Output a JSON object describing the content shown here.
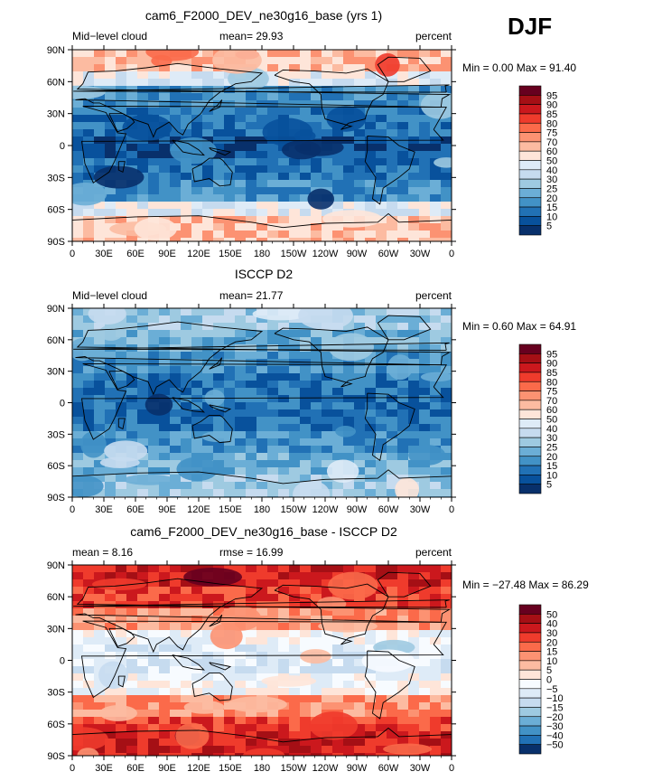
{
  "season": "DJF",
  "chart_data": [
    {
      "type": "heatmap",
      "title": "cam6_F2000_DEV_ne30g16_base (yrs 1)",
      "left_label": "Mid−level cloud",
      "center_label": "mean=  29.93",
      "right_label": "percent",
      "stats": "Min =   0.00 Max =  91.40",
      "lon_ticks": [
        "0",
        "30E",
        "60E",
        "90E",
        "120E",
        "150E",
        "180",
        "150W",
        "120W",
        "90W",
        "60W",
        "30W",
        "0"
      ],
      "lat_ticks": [
        "90N",
        "60N",
        "30N",
        "0",
        "30S",
        "60S",
        "90S"
      ],
      "colorbar_levels": [
        "95",
        "90",
        "85",
        "80",
        "75",
        "70",
        "60",
        "50",
        "40",
        "30",
        "25",
        "20",
        "15",
        "10",
        "5"
      ],
      "colorbar_colors": [
        "#67001f",
        "#a50f15",
        "#cb181d",
        "#ef3b2c",
        "#fb6a4a",
        "#fc9272",
        "#fcbba1",
        "#fee5d9",
        "#deebf7",
        "#c6dbef",
        "#9ecae1",
        "#6baed6",
        "#4292c6",
        "#2171b5",
        "#08519c",
        "#08306b"
      ],
      "mean": 29.93,
      "min": 0.0,
      "max": 91.4
    },
    {
      "type": "heatmap",
      "title": "ISCCP D2",
      "left_label": "Mid−level cloud",
      "center_label": "mean=  21.77",
      "right_label": "percent",
      "stats": "Min =   0.60 Max =  64.91",
      "lon_ticks": [
        "0",
        "30E",
        "60E",
        "90E",
        "120E",
        "150E",
        "180",
        "150W",
        "120W",
        "90W",
        "60W",
        "30W",
        "0"
      ],
      "lat_ticks": [
        "90N",
        "60N",
        "30N",
        "0",
        "30S",
        "60S",
        "90S"
      ],
      "colorbar_levels": [
        "95",
        "90",
        "85",
        "80",
        "75",
        "70",
        "60",
        "50",
        "40",
        "30",
        "25",
        "20",
        "15",
        "10",
        "5"
      ],
      "colorbar_colors": [
        "#67001f",
        "#a50f15",
        "#cb181d",
        "#ef3b2c",
        "#fb6a4a",
        "#fc9272",
        "#fcbba1",
        "#fee5d9",
        "#deebf7",
        "#c6dbef",
        "#9ecae1",
        "#6baed6",
        "#4292c6",
        "#2171b5",
        "#08519c",
        "#08306b"
      ],
      "mean": 21.77,
      "min": 0.6,
      "max": 64.91
    },
    {
      "type": "heatmap",
      "title": "cam6_F2000_DEV_ne30g16_base - ISCCP D2",
      "left_label": "mean =   8.16",
      "center_label": "rmse =  16.99",
      "right_label": "percent",
      "stats": "Min = −27.48 Max =  86.29",
      "lon_ticks": [
        "0",
        "30E",
        "60E",
        "90E",
        "120E",
        "150E",
        "180",
        "150W",
        "120W",
        "90W",
        "60W",
        "30W",
        "0"
      ],
      "lat_ticks": [
        "90N",
        "60N",
        "30N",
        "0",
        "30S",
        "60S",
        "90S"
      ],
      "colorbar_levels": [
        "50",
        "40",
        "30",
        "20",
        "15",
        "10",
        "5",
        "0",
        "−5",
        "−10",
        "−15",
        "−20",
        "−30",
        "−40",
        "−50"
      ],
      "colorbar_colors": [
        "#67001f",
        "#a50f15",
        "#cb181d",
        "#ef3b2c",
        "#fb6a4a",
        "#fc9272",
        "#fcbba1",
        "#fee5d9",
        "#f7fbff",
        "#deebf7",
        "#c6dbef",
        "#9ecae1",
        "#6baed6",
        "#4292c6",
        "#2171b5",
        "#08306b"
      ],
      "mean": 8.16,
      "rmse": 16.99,
      "min": -27.48,
      "max": 86.29
    }
  ]
}
